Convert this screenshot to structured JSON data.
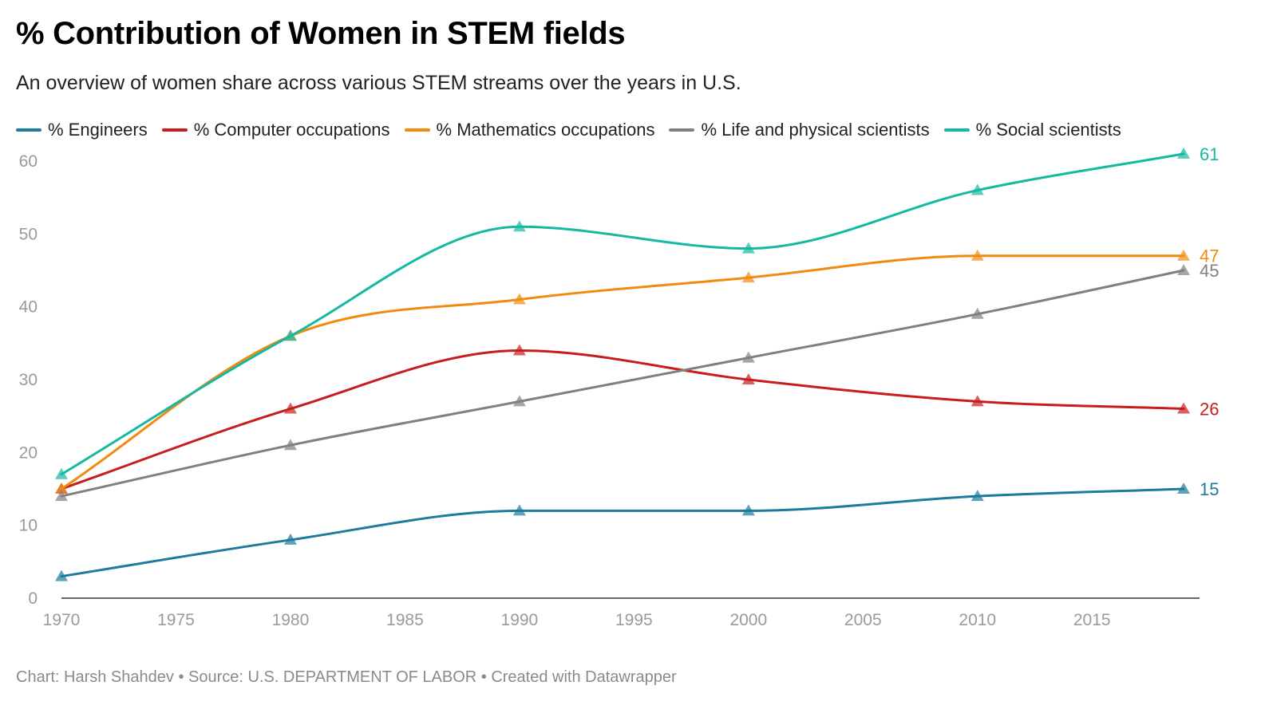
{
  "title": "% Contribution of Women in STEM fields",
  "subtitle": "An overview of women share across various STEM streams over the years in U.S.",
  "footer": "Chart: Harsh Shahdev • Source: U.S. DEPARTMENT OF LABOR • Created with Datawrapper",
  "chart_data": {
    "type": "line",
    "title": "% Contribution of Women in STEM fields",
    "subtitle": "An overview of women share across various STEM streams over the years in U.S.",
    "x": [
      1970,
      1980,
      1990,
      2000,
      2010,
      2019
    ],
    "x_ticks": [
      1970,
      1975,
      1980,
      1985,
      1990,
      1995,
      2000,
      2005,
      2010,
      2015
    ],
    "xlim": [
      1970,
      2019
    ],
    "y_ticks": [
      0,
      10,
      20,
      30,
      40,
      50,
      60
    ],
    "ylim": [
      0,
      60
    ],
    "grid": false,
    "legend": "top",
    "marker": "triangle",
    "series": [
      {
        "name": "% Engineers",
        "color": "#1d7b9b",
        "values": [
          3,
          8,
          12,
          12,
          14,
          15
        ],
        "end_label": "15"
      },
      {
        "name": "% Computer occupations",
        "color": "#c71e1d",
        "values": [
          15,
          26,
          34,
          30,
          27,
          26
        ],
        "end_label": "26"
      },
      {
        "name": "% Mathematics occupations",
        "color": "#f18a0e",
        "values": [
          15,
          36,
          41,
          44,
          47,
          47
        ],
        "end_label": "47"
      },
      {
        "name": "% Life and physical scientists",
        "color": "#808080",
        "values": [
          14,
          21,
          27,
          33,
          39,
          45
        ],
        "end_label": "45"
      },
      {
        "name": "% Social scientists",
        "color": "#15b8a1",
        "values": [
          17,
          36,
          51,
          48,
          56,
          61
        ],
        "end_label": "61"
      }
    ]
  }
}
